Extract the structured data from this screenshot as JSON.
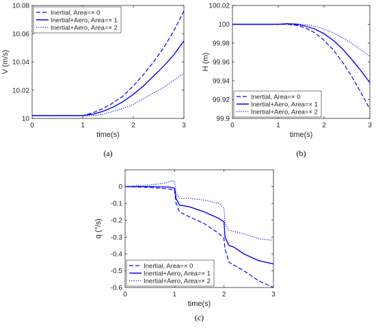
{
  "chart_data": [
    {
      "id": "a",
      "type": "line",
      "caption": "(a)",
      "xlabel": "time(s)",
      "ylabel": "V (m/s)",
      "xlim": [
        0,
        3
      ],
      "ylim": [
        10,
        10.08
      ],
      "xticks": [
        0,
        1,
        2,
        3
      ],
      "yticks": [
        10,
        10.02,
        10.04,
        10.06,
        10.08
      ],
      "ytick_labels": [
        "10",
        "10.02",
        "10.04",
        "10.06",
        "10.08"
      ],
      "legend_position": "top-left",
      "grid": false,
      "color": "#0000ff",
      "series": [
        {
          "name": "Inertial, Area=× 0",
          "style": "dashed",
          "x": [
            0,
            0.5,
            1.0,
            1.2,
            1.4,
            1.6,
            1.8,
            2.0,
            2.2,
            2.4,
            2.6,
            2.8,
            3.0
          ],
          "y": [
            10.002,
            10.002,
            10.002,
            10.004,
            10.007,
            10.011,
            10.016,
            10.023,
            10.031,
            10.04,
            10.05,
            10.062,
            10.076
          ]
        },
        {
          "name": "Inertial+Aero, Area=× 1",
          "style": "solid",
          "x": [
            0,
            0.5,
            1.0,
            1.2,
            1.4,
            1.6,
            1.8,
            2.0,
            2.2,
            2.4,
            2.6,
            2.8,
            3.0
          ],
          "y": [
            10.002,
            10.002,
            10.002,
            10.003,
            10.005,
            10.008,
            10.012,
            10.017,
            10.023,
            10.03,
            10.037,
            10.045,
            10.055
          ]
        },
        {
          "name": "Inertial+Aero, Area=× 2",
          "style": "dotted",
          "x": [
            0,
            0.5,
            1.0,
            1.2,
            1.4,
            1.6,
            1.8,
            2.0,
            2.2,
            2.4,
            2.6,
            2.8,
            3.0
          ],
          "y": [
            10.002,
            10.002,
            10.002,
            10.002,
            10.003,
            10.005,
            10.007,
            10.01,
            10.014,
            10.018,
            10.022,
            10.027,
            10.032
          ]
        }
      ]
    },
    {
      "id": "b",
      "type": "line",
      "caption": "(b)",
      "xlabel": "time(s)",
      "ylabel": "H (m)",
      "xlim": [
        0,
        3
      ],
      "ylim": [
        99.9,
        100.02
      ],
      "xticks": [
        0,
        1,
        2,
        3
      ],
      "yticks": [
        99.9,
        99.92,
        99.94,
        99.96,
        99.98,
        100,
        100.02
      ],
      "ytick_labels": [
        "99.9",
        "99.92",
        "99.94",
        "99.96",
        "99.98",
        "100",
        "100.02"
      ],
      "legend_position": "bottom-left",
      "grid": false,
      "color": "#0000ff",
      "series": [
        {
          "name": "Inertial, Area=× 0",
          "style": "dashed",
          "x": [
            0,
            0.5,
            1.0,
            1.2,
            1.4,
            1.6,
            1.8,
            2.0,
            2.2,
            2.4,
            2.6,
            2.8,
            3.0
          ],
          "y": [
            100,
            100,
            100,
            100,
            99.999,
            99.996,
            99.991,
            99.983,
            99.973,
            99.96,
            99.945,
            99.928,
            99.91
          ]
        },
        {
          "name": "Inertial+Aero, Area=× 1",
          "style": "solid",
          "x": [
            0,
            0.5,
            1.0,
            1.2,
            1.4,
            1.6,
            1.8,
            2.0,
            2.2,
            2.4,
            2.6,
            2.8,
            3.0
          ],
          "y": [
            100,
            100,
            100,
            100.0005,
            100,
            99.998,
            99.995,
            99.99,
            99.983,
            99.974,
            99.963,
            99.951,
            99.938
          ]
        },
        {
          "name": "Inertial+Aero, Area=× 2",
          "style": "dotted",
          "x": [
            0,
            0.5,
            1.0,
            1.2,
            1.4,
            1.6,
            1.8,
            2.0,
            2.2,
            2.4,
            2.6,
            2.8,
            3.0
          ],
          "y": [
            100,
            100,
            100,
            100.001,
            100.0005,
            99.9995,
            99.998,
            99.995,
            99.991,
            99.986,
            99.98,
            99.973,
            99.966
          ]
        }
      ]
    },
    {
      "id": "c",
      "type": "line",
      "caption": "(c)",
      "xlabel": "time(s)",
      "ylabel": "q (°/s)",
      "xlim": [
        0,
        3
      ],
      "ylim": [
        -0.6,
        0.1
      ],
      "xticks": [
        0,
        1,
        2,
        3
      ],
      "yticks": [
        -0.6,
        -0.5,
        -0.4,
        -0.3,
        -0.2,
        -0.1,
        0
      ],
      "ytick_labels": [
        "-0.6",
        "-0.5",
        "-0.4",
        "-0.3",
        "-0.2",
        "-0.1",
        "0"
      ],
      "legend_position": "bottom-left",
      "grid": false,
      "color": "#0000ff",
      "series": [
        {
          "name": "Inertial, Area=× 0",
          "style": "dashed",
          "x": [
            0,
            0.5,
            0.9,
            1.0,
            1.03,
            1.1,
            1.3,
            1.6,
            1.9,
            2.0,
            2.02,
            2.1,
            2.4,
            2.7,
            3.0
          ],
          "y": [
            0,
            -0.005,
            -0.015,
            -0.02,
            -0.1,
            -0.15,
            -0.18,
            -0.22,
            -0.28,
            -0.31,
            -0.37,
            -0.45,
            -0.5,
            -0.56,
            -0.6
          ]
        },
        {
          "name": "Inertial+Aero, Area=× 1",
          "style": "solid",
          "x": [
            0,
            0.5,
            0.9,
            1.0,
            1.03,
            1.1,
            1.3,
            1.6,
            1.9,
            2.0,
            2.02,
            2.1,
            2.2,
            2.4,
            2.7,
            3.0
          ],
          "y": [
            0,
            0,
            -0.003,
            -0.01,
            -0.07,
            -0.11,
            -0.12,
            -0.15,
            -0.19,
            -0.21,
            -0.3,
            -0.35,
            -0.36,
            -0.4,
            -0.44,
            -0.46
          ]
        },
        {
          "name": "Inertial+Aero, Area=× 2",
          "style": "dotted",
          "x": [
            0,
            0.5,
            0.8,
            0.95,
            1.0,
            1.03,
            1.1,
            1.3,
            1.6,
            1.9,
            2.0,
            2.02,
            2.1,
            2.4,
            2.7,
            3.0
          ],
          "y": [
            0,
            0.01,
            0.02,
            0.035,
            0.03,
            -0.04,
            -0.07,
            -0.07,
            -0.08,
            -0.1,
            -0.13,
            -0.22,
            -0.26,
            -0.28,
            -0.31,
            -0.32
          ]
        }
      ]
    }
  ]
}
